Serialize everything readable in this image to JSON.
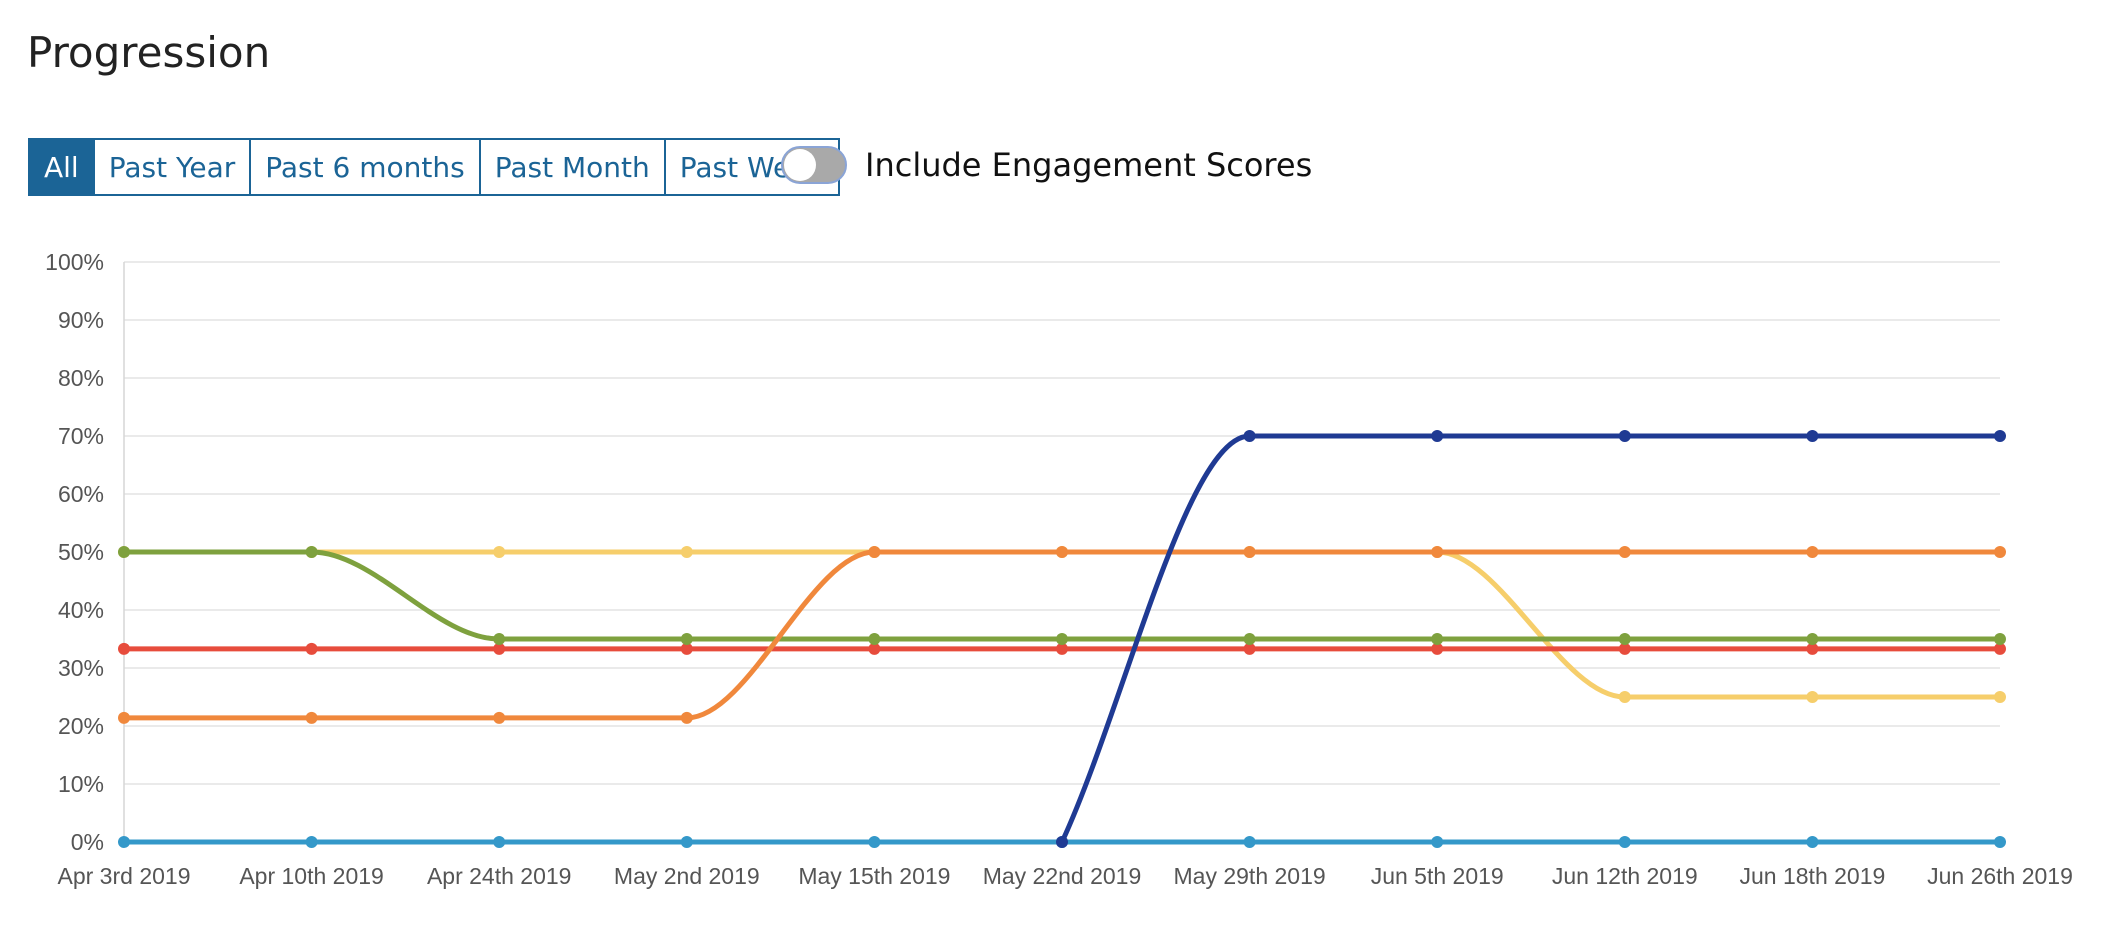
{
  "header": {
    "title": "Progression"
  },
  "filters": {
    "buttons": [
      {
        "label": "All",
        "active": true
      },
      {
        "label": "Past Year",
        "active": false
      },
      {
        "label": "Past 6 months",
        "active": false
      },
      {
        "label": "Past Month",
        "active": false
      },
      {
        "label": "Past Week",
        "active": false
      }
    ]
  },
  "toggle": {
    "label": "Include Engagement Scores",
    "on": false
  },
  "chart_data": {
    "type": "line",
    "title": "",
    "xlabel": "",
    "ylabel": "",
    "categories": [
      "Apr 3rd 2019",
      "Apr 10th 2019",
      "Apr 24th 2019",
      "May 2nd 2019",
      "May 15th 2019",
      "May 22nd 2019",
      "May 29th 2019",
      "Jun 5th 2019",
      "Jun 12th 2019",
      "Jun 18th 2019",
      "Jun 26th 2019"
    ],
    "ylim": [
      0,
      100
    ],
    "yticks": [
      "0%",
      "10%",
      "20%",
      "30%",
      "40%",
      "50%",
      "60%",
      "70%",
      "80%",
      "90%",
      "100%"
    ],
    "grid": true,
    "smooth": true,
    "series": [
      {
        "color": "#f6ce6b",
        "values": [
          50,
          50,
          50,
          50,
          50,
          50,
          50,
          50,
          25,
          25,
          25
        ]
      },
      {
        "color": "#e74c3c",
        "values": [
          33.3,
          33.3,
          33.3,
          33.3,
          33.3,
          33.3,
          33.3,
          33.3,
          33.3,
          33.3,
          33.3
        ]
      },
      {
        "color": "#7ea13e",
        "values": [
          50,
          50,
          35,
          35,
          35,
          35,
          35,
          35,
          35,
          35,
          35
        ]
      },
      {
        "color": "#f0883c",
        "values": [
          21.4,
          21.4,
          21.4,
          21.4,
          50,
          50,
          50,
          50,
          50,
          50,
          50
        ]
      },
      {
        "color": "#3498c9",
        "values": [
          0,
          0,
          0,
          0,
          0,
          0,
          0,
          0,
          0,
          0,
          0
        ]
      },
      {
        "color": "#1f3a93",
        "values": [
          null,
          null,
          null,
          null,
          null,
          0,
          70,
          70,
          70,
          70,
          70
        ]
      }
    ]
  }
}
